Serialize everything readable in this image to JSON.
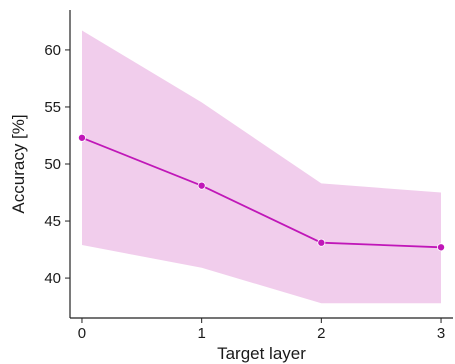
{
  "chart_data": {
    "type": "line",
    "xlabel": "Target layer",
    "ylabel": "Accuracy [%]",
    "x": [
      0,
      1,
      2,
      3
    ],
    "xticks": [
      "0",
      "1",
      "2",
      "3"
    ],
    "yticks": [
      40,
      45,
      50,
      55,
      60
    ],
    "xlim": [
      -0.1,
      3.1
    ],
    "ylim": [
      36.5,
      63.5
    ],
    "series": [
      {
        "values": [
          52.3,
          48.1,
          43.1,
          42.7
        ],
        "lower": [
          42.9,
          40.9,
          37.8,
          37.8
        ],
        "upper": [
          61.7,
          55.4,
          48.3,
          47.5
        ]
      }
    ],
    "line_color": "#c017b8",
    "band_color": "#f1cdec",
    "grid": false,
    "legend": "none"
  }
}
